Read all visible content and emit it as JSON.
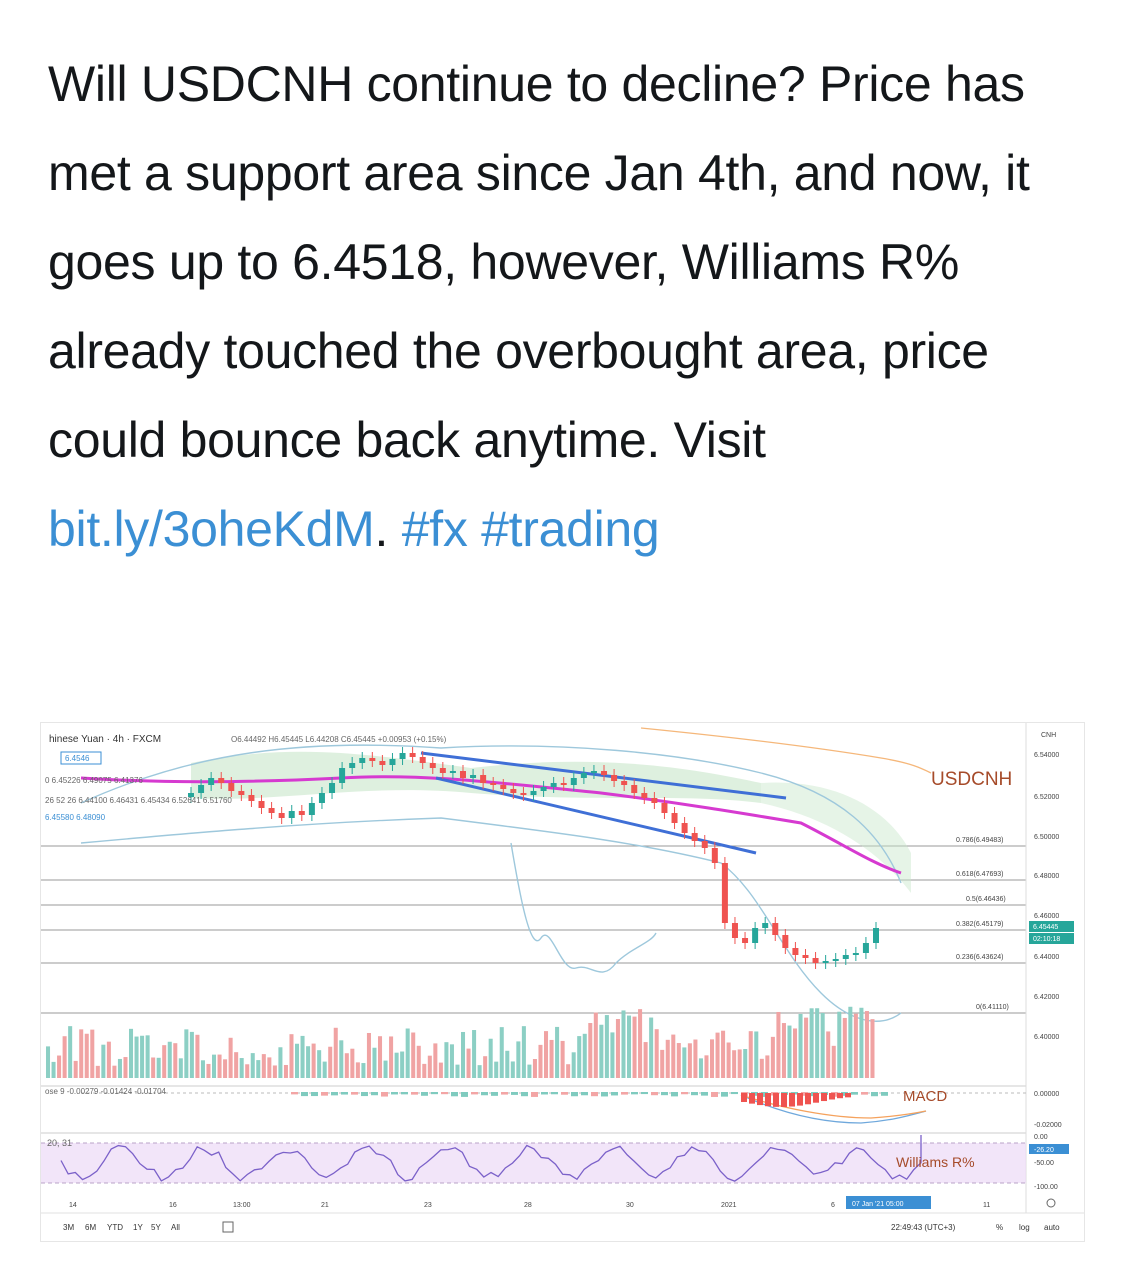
{
  "tweet": {
    "text": "Will USDCNH continue to decline? Price has met a support area since Jan 4th, and now, it goes up to 6.4518, however, Williams R% already touched the overbought area, price could bounce back anytime. Visit ",
    "link": "bit.ly/3oheKdM",
    "after_link": ". ",
    "hashtags": [
      "#fx",
      "#trading"
    ]
  },
  "chart": {
    "header_symbol": "hinese Yuan · 4h · FXCM",
    "header_ohlc": "O6.44492  H6.45445  L6.44208  C6.45445  +0.00953 (+0.15%)",
    "price_badge": "6.4546",
    "indicator_row1": "0  6.45226  6.49075  6.41376",
    "indicator_row2": "26 52 26  6.44100  6.46431  6.45434  6.52641  6.51760",
    "indicator_row3": "6.45580  6.48090",
    "macd_header": "ose 9  -0.00279  -0.01424  -0.01704",
    "williams_header": "20, 31",
    "symbol_watermark": "USDCNH",
    "macd_label": "MACD",
    "williams_label": "Williams R%",
    "currency_label": "CNH",
    "price_axis": [
      "6.54000",
      "6.52000",
      "6.50000",
      "6.48000",
      "6.46000",
      "6.44000",
      "6.42000",
      "6.40000"
    ],
    "current_price": "6.45445",
    "countdown": "02:10:18",
    "fib_levels": [
      "0.786(6.49483)",
      "0.618(6.47693)",
      "0.5(6.46436)",
      "0.382(6.45179)",
      "0.236(6.43624)",
      "0(6.41110)"
    ],
    "macd_axis": [
      "0.00000",
      "-0.02000"
    ],
    "wr_axis": [
      "0.00",
      "-26.20",
      "-50.00",
      "-100.00"
    ],
    "time_axis": [
      "14",
      "16",
      "13:00",
      "21",
      "23",
      "28",
      "30",
      "2021",
      "6",
      "11"
    ],
    "time_badge": "07 Jan '21  05:00",
    "ranges": [
      "3M",
      "6M",
      "YTD",
      "1Y",
      "5Y",
      "All"
    ],
    "clock": "22:49:43 (UTC+3)",
    "scale_opts": [
      "%",
      "log",
      "auto"
    ],
    "colors": {
      "up": "#26a69a",
      "down": "#ef5350",
      "blue_line": "#3f6fd6",
      "magenta": "#d63ad0",
      "bollinger": "#9ec8dc",
      "ichimoku_fill": "#c8e6c9",
      "wr_band": "#ecdaf7",
      "volume_up": "#8ccfc4",
      "volume_down": "#f0a3a3"
    }
  }
}
